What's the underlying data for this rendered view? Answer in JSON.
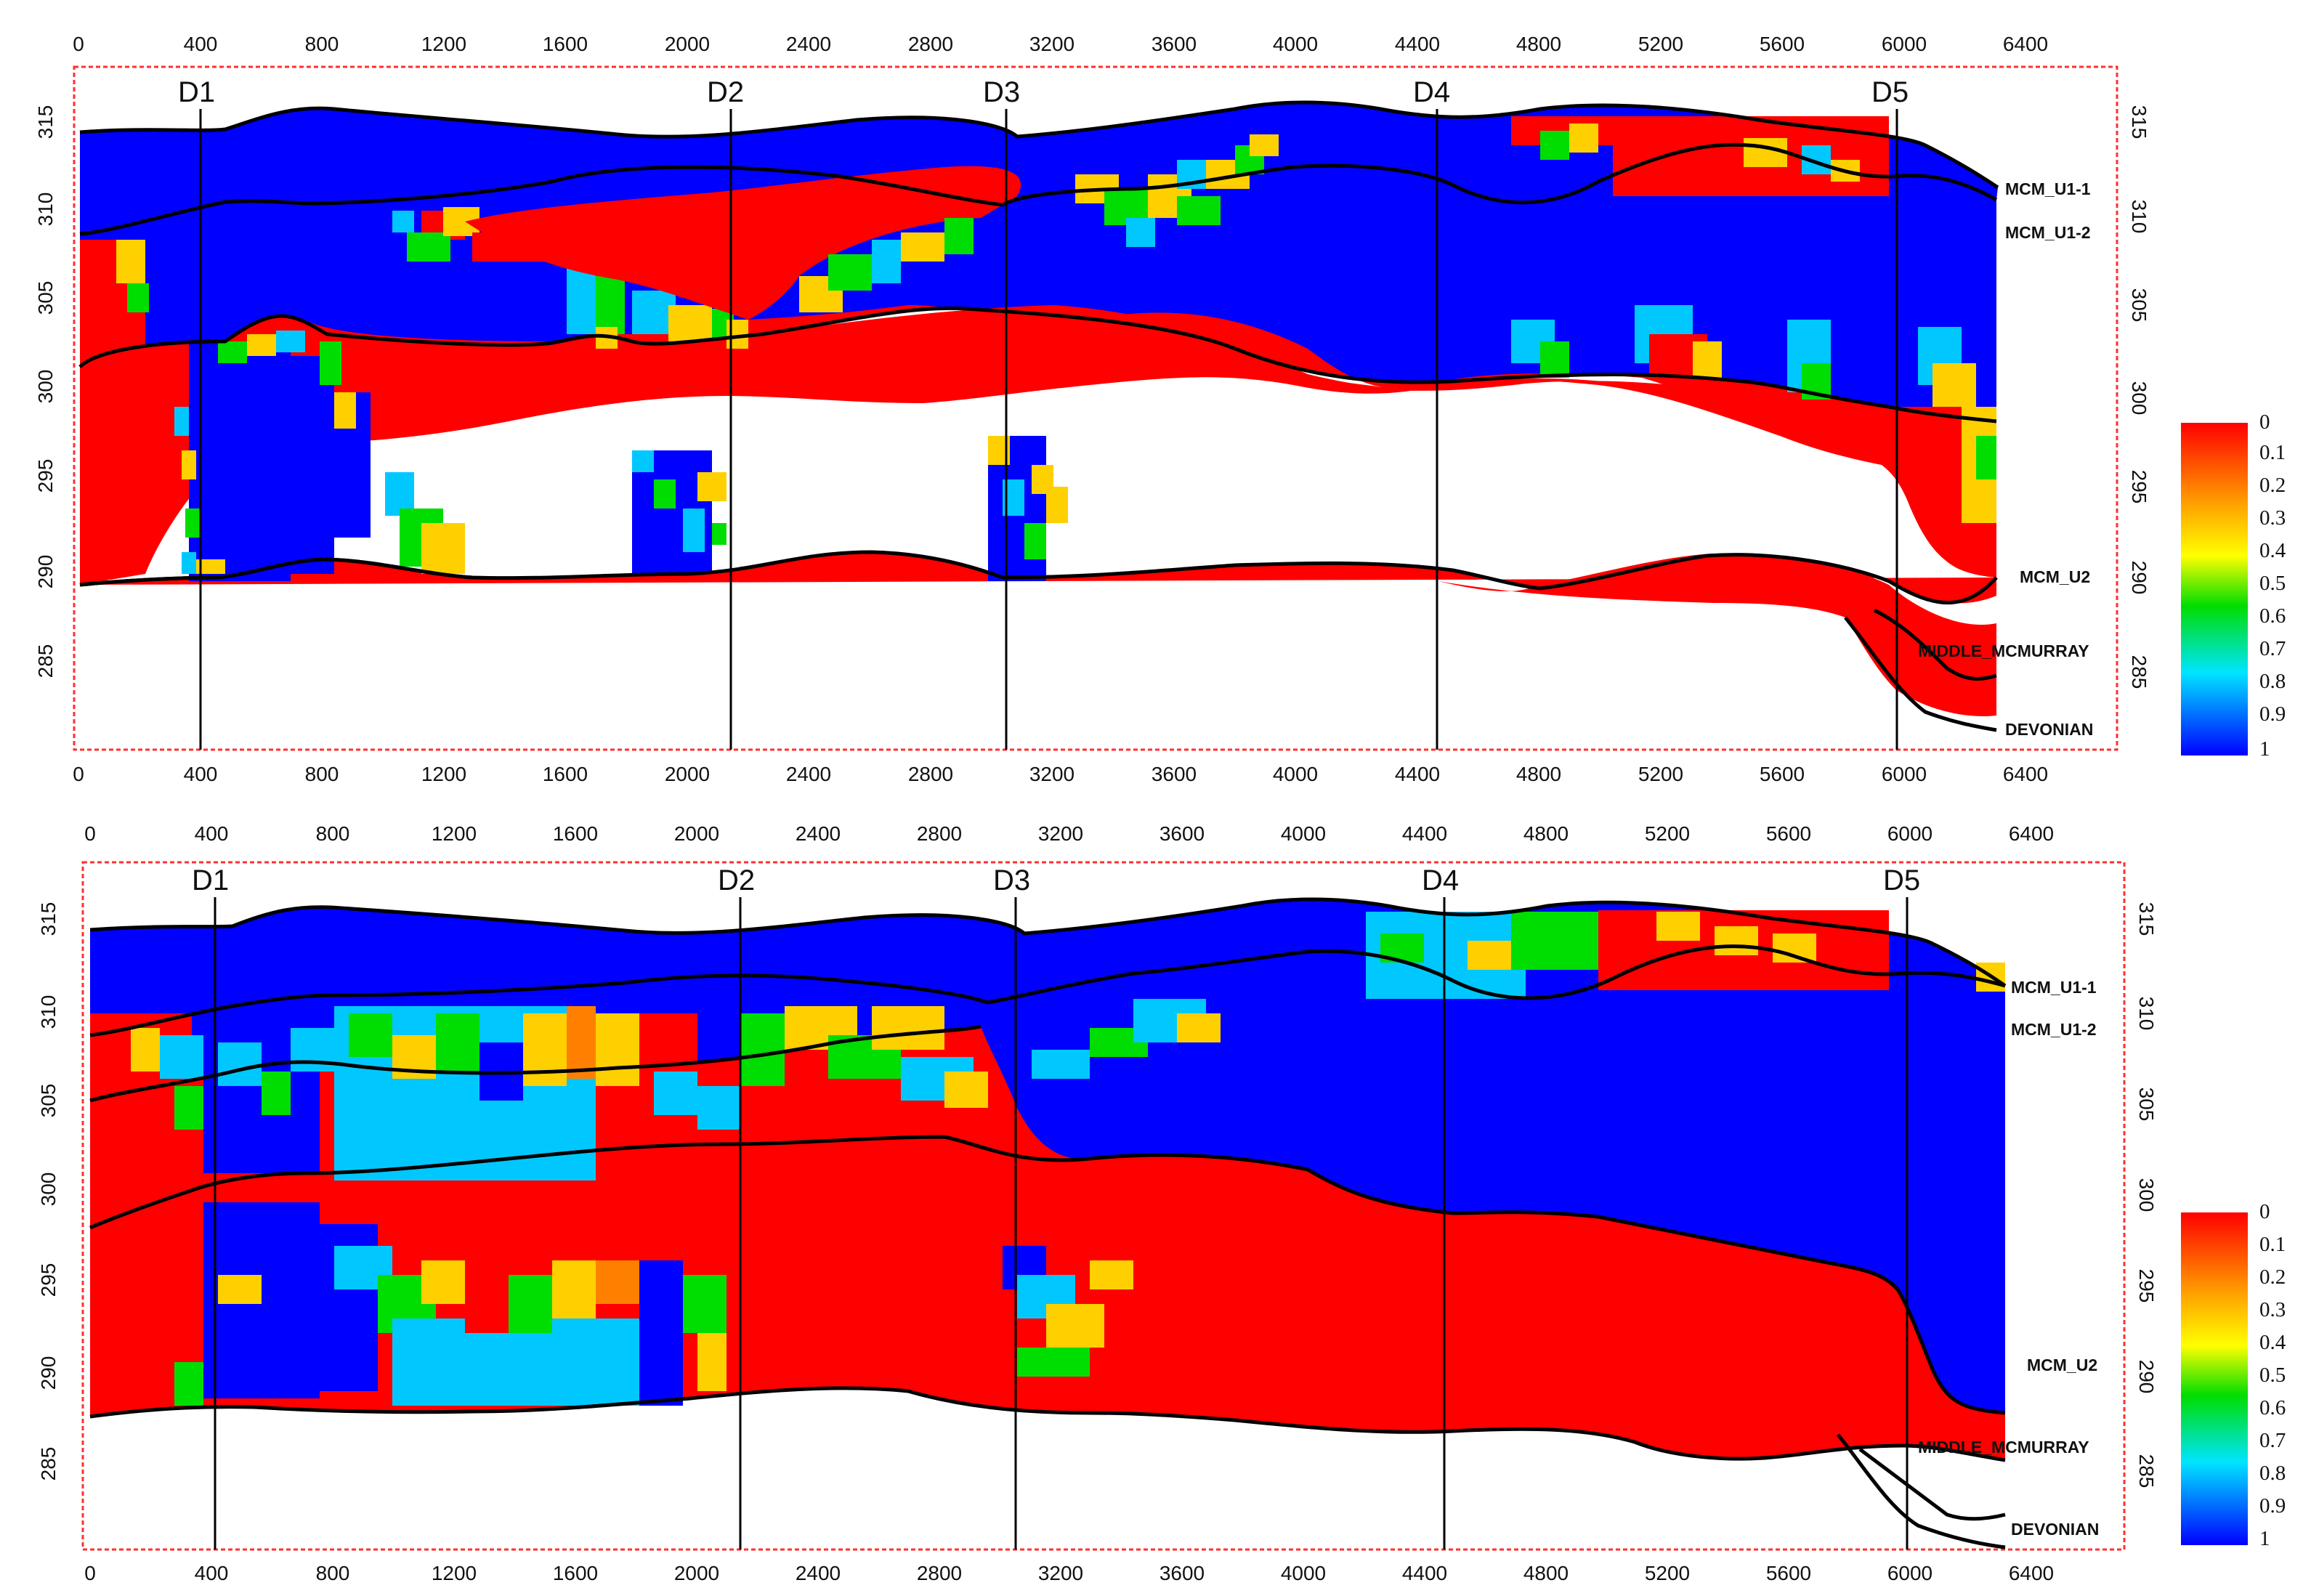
{
  "x_ticks": [
    "0",
    "400",
    "800",
    "1200",
    "1600",
    "2000",
    "2400",
    "2800",
    "3200",
    "3600",
    "4000",
    "4400",
    "4800",
    "5200",
    "5600",
    "6000",
    "6400"
  ],
  "y_ticks": [
    "315",
    "310",
    "305",
    "300",
    "295",
    "290",
    "285"
  ],
  "wells": [
    {
      "name": "D1",
      "x": 400
    },
    {
      "name": "D2",
      "x": 2150
    },
    {
      "name": "D3",
      "x": 3060
    },
    {
      "name": "D4",
      "x": 4490
    },
    {
      "name": "D5",
      "x": 6010
    }
  ],
  "horizon_labels": [
    "MCM_U1-1",
    "MCM_U1-2",
    "MCM_U2",
    "MIDDLE_MCMURRAY",
    "DEVONIAN"
  ],
  "colorbar_labels": [
    "0",
    "0.1",
    "0.2",
    "0.3",
    "0.4",
    "0.5",
    "0.6",
    "0.7",
    "0.8",
    "0.9",
    "1"
  ],
  "colors": {
    "value_0": "#ff0000",
    "value_0_25": "#ffa500",
    "value_0_5": "#00dd00",
    "value_0_75": "#00c8ff",
    "value_1": "#0000ff",
    "frame_border": "#ff3030",
    "horizon_line": "#000000"
  },
  "panels": [
    {
      "id": "top",
      "wells": [
        "D1",
        "D2",
        "D3",
        "D4",
        "D5"
      ]
    },
    {
      "id": "bottom",
      "wells": [
        "D1",
        "D2",
        "D3",
        "D4",
        "D5"
      ]
    }
  ]
}
